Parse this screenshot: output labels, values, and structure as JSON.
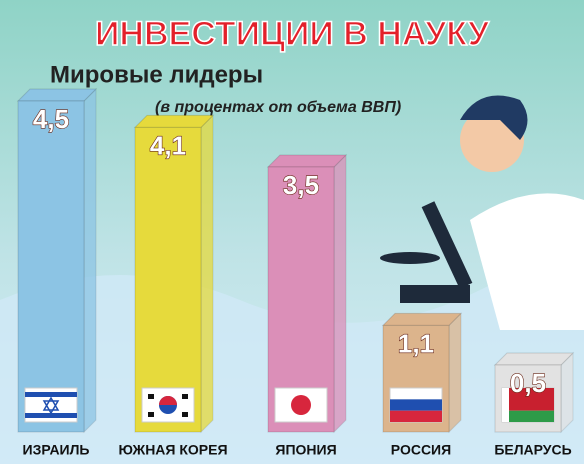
{
  "chart_data": {
    "type": "bar",
    "title": "ИНВЕСТИЦИИ В НАУКУ",
    "subtitle": "Мировые лидеры",
    "note": "(в процентах от объема ВВП)",
    "categories": [
      "ИЗРАИЛЬ",
      "ЮЖНАЯ КОРЕЯ",
      "ЯПОНИЯ",
      "РОССИЯ",
      "БЕЛАРУСЬ"
    ],
    "values": [
      4.5,
      4.1,
      3.5,
      1.1,
      0.5
    ],
    "value_labels": [
      "4,5",
      "4,1",
      "3,5",
      "1,1",
      "0,5"
    ],
    "colors": [
      "#8cc4e4",
      "#e6da3c",
      "#db8fb8",
      "#dcb48c",
      "#e2e2e2"
    ]
  }
}
